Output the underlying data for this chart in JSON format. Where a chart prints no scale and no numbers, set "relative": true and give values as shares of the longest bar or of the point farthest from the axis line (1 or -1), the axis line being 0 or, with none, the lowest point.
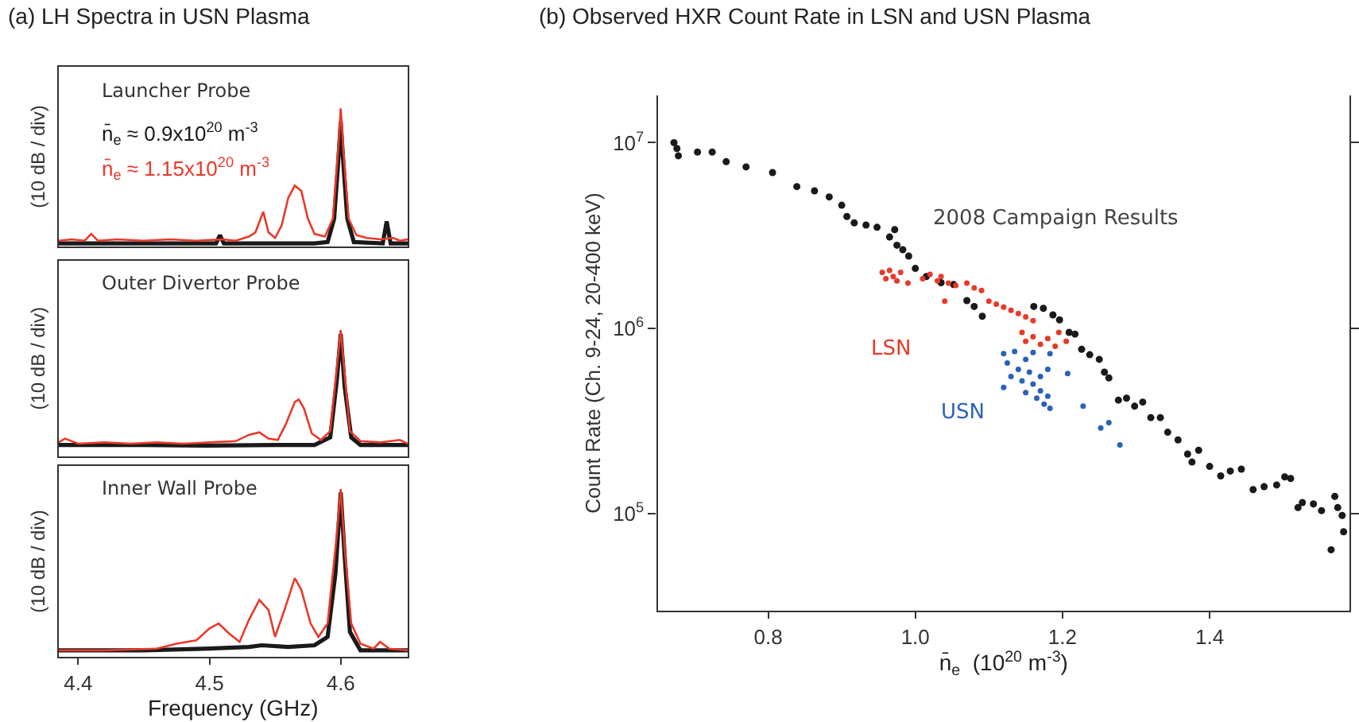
{
  "chart_data": [
    {
      "type": "line",
      "title": "(a) LH Spectra in USN Plasma",
      "ylabel": "(10 dB / div)",
      "annotations": [
        "Launcher Probe"
      ],
      "relative": true,
      "xlim": [
        4.385,
        4.651
      ],
      "tick_labels": false,
      "line_style": "solid",
      "series": [
        {
          "name": "n̄$_{e}$ ≈ 0.9x10$^{20}$ m$^{-3}$",
          "color": "#1a1a1a",
          "x": [
            4.385,
            4.45,
            4.505,
            4.508,
            4.511,
            4.58,
            4.59,
            4.595,
            4.598,
            4.6,
            4.602,
            4.605,
            4.61,
            4.632,
            4.635,
            4.638,
            4.651
          ],
          "values": [
            0.02,
            0.02,
            0.02,
            0.08,
            0.02,
            0.02,
            0.03,
            0.2,
            0.6,
            0.9,
            0.6,
            0.2,
            0.03,
            0.02,
            0.18,
            0.02,
            0.02
          ]
        },
        {
          "name": "n̄$_{e}$ ≈ 1.15x10$^{20}$ m$^{-3}$",
          "color": "#e8392a",
          "x": [
            4.385,
            4.395,
            4.405,
            4.41,
            4.415,
            4.43,
            4.45,
            4.47,
            4.49,
            4.51,
            4.52,
            4.53,
            4.535,
            4.541,
            4.545,
            4.55,
            4.555,
            4.56,
            4.565,
            4.57,
            4.575,
            4.58,
            4.588,
            4.594,
            4.598,
            4.6,
            4.602,
            4.606,
            4.612,
            4.62,
            4.63,
            4.64,
            4.645,
            4.651
          ],
          "values": [
            0.04,
            0.05,
            0.04,
            0.09,
            0.04,
            0.05,
            0.04,
            0.05,
            0.04,
            0.05,
            0.04,
            0.07,
            0.1,
            0.25,
            0.1,
            0.06,
            0.15,
            0.35,
            0.44,
            0.4,
            0.2,
            0.09,
            0.07,
            0.2,
            0.7,
            1.0,
            0.7,
            0.2,
            0.08,
            0.06,
            0.05,
            0.06,
            0.04,
            0.05
          ]
        }
      ]
    },
    {
      "type": "line",
      "ylabel": "(10 dB / div)",
      "annotations": [
        "Outer Divertor Probe"
      ],
      "relative": true,
      "xlim": [
        4.385,
        4.651
      ],
      "tick_labels": false,
      "line_style": "solid",
      "series": [
        {
          "color": "#1a1a1a",
          "x": [
            4.385,
            4.45,
            4.5,
            4.55,
            4.58,
            4.592,
            4.597,
            4.6,
            4.603,
            4.608,
            4.615,
            4.651
          ],
          "values": [
            0.09,
            0.09,
            0.085,
            0.09,
            0.09,
            0.15,
            0.6,
            0.97,
            0.55,
            0.15,
            0.09,
            0.09
          ]
        },
        {
          "color": "#e8392a",
          "x": [
            4.385,
            4.39,
            4.4,
            4.42,
            4.44,
            4.46,
            4.48,
            4.5,
            4.52,
            4.53,
            4.538,
            4.545,
            4.552,
            4.558,
            4.565,
            4.568,
            4.572,
            4.578,
            4.585,
            4.592,
            4.597,
            4.6,
            4.603,
            4.607,
            4.615,
            4.63,
            4.645,
            4.651
          ],
          "values": [
            0.11,
            0.14,
            0.1,
            0.11,
            0.1,
            0.11,
            0.1,
            0.11,
            0.12,
            0.17,
            0.19,
            0.14,
            0.13,
            0.25,
            0.43,
            0.45,
            0.38,
            0.18,
            0.13,
            0.2,
            0.7,
            1.0,
            0.65,
            0.2,
            0.12,
            0.11,
            0.13,
            0.1
          ]
        }
      ]
    },
    {
      "type": "line",
      "xlabel": "Frequency (GHz)",
      "ylabel": "(10 dB / div)",
      "annotations": [
        "Inner Wall Probe"
      ],
      "relative": true,
      "xlim": [
        4.385,
        4.651
      ],
      "xticks": [
        4.4,
        4.5,
        4.6
      ],
      "tick_labels": "x",
      "line_style": "solid",
      "series": [
        {
          "color": "#1a1a1a",
          "x": [
            4.385,
            4.45,
            4.5,
            4.53,
            4.54,
            4.56,
            4.58,
            4.59,
            4.596,
            4.6,
            4.603,
            4.607,
            4.615,
            4.651
          ],
          "values": [
            0.04,
            0.04,
            0.05,
            0.06,
            0.07,
            0.06,
            0.07,
            0.12,
            0.5,
            0.98,
            0.6,
            0.15,
            0.04,
            0.04
          ]
        },
        {
          "color": "#e8392a",
          "x": [
            4.385,
            4.42,
            4.46,
            4.475,
            4.49,
            4.5,
            4.507,
            4.515,
            4.523,
            4.53,
            4.538,
            4.545,
            4.55,
            4.558,
            4.565,
            4.57,
            4.577,
            4.583,
            4.59,
            4.596,
            4.6,
            4.603,
            4.608,
            4.615,
            4.625,
            4.63,
            4.637,
            4.651
          ],
          "values": [
            0.04,
            0.04,
            0.05,
            0.08,
            0.1,
            0.17,
            0.2,
            0.14,
            0.09,
            0.22,
            0.34,
            0.28,
            0.12,
            0.3,
            0.47,
            0.4,
            0.2,
            0.12,
            0.2,
            0.65,
            1.0,
            0.65,
            0.2,
            0.08,
            0.05,
            0.09,
            0.05,
            0.04
          ]
        }
      ]
    },
    {
      "type": "scatter",
      "title": "(b) Observed HXR Count Rate in LSN and USN Plasma",
      "xlabel": "n̄$_{e}$  (10$^{20}$ m$^{-3}$)",
      "ylabel": "Count Rate (Ch. 9-24, 20-400 keV)",
      "log": "y",
      "marker": "circle",
      "xlim": [
        0.65,
        1.59
      ],
      "xticks": [
        0.8,
        {
          "value": 1.0,
          "label": "1.0"
        },
        1.2,
        1.4
      ],
      "ylim": [
        30000,
        18000000
      ],
      "yticks": [
        {
          "value": 100000,
          "label": "10$^{5}$"
        },
        {
          "value": 1000000,
          "label": "10$^{6}$"
        },
        {
          "value": 10000000,
          "label": "10$^{7}$"
        }
      ],
      "series": [
        {
          "name": "2008 Campaign Results",
          "color": "#1a1a1a",
          "x": [
            0.672,
            0.676,
            0.678,
            0.704,
            0.724,
            0.743,
            0.77,
            0.806,
            0.839,
            0.863,
            0.883,
            0.9,
            0.907,
            0.917,
            0.933,
            0.948,
            0.965,
            0.972,
            0.975,
            0.983,
            0.991,
            1.0,
            1.015,
            1.035,
            1.052,
            1.07,
            1.08,
            1.091,
            1.161,
            1.174,
            1.187,
            1.196,
            1.209,
            1.217,
            1.226,
            1.237,
            1.25,
            1.257,
            1.263,
            1.276,
            1.287,
            1.298,
            1.309,
            1.32,
            1.333,
            1.343,
            1.357,
            1.37,
            1.376,
            1.385,
            1.4,
            1.415,
            1.428,
            1.443,
            1.459,
            1.474,
            1.491,
            1.502,
            1.51,
            1.52,
            1.526,
            1.541,
            1.552,
            1.565,
            1.57,
            1.574,
            1.58,
            1.582
          ],
          "values": [
            10000000,
            9300000,
            8500000,
            8900000,
            8900000,
            7900000,
            7400000,
            6900000,
            5800000,
            5500000,
            5100000,
            4600000,
            4000000,
            3700000,
            3600000,
            3500000,
            3100000,
            3400000,
            2800000,
            2650000,
            2450000,
            2100000,
            1900000,
            1760000,
            1720000,
            1410000,
            1310000,
            1160000,
            1310000,
            1280000,
            1180000,
            1110000,
            950000,
            930000,
            770000,
            720000,
            680000,
            580000,
            540000,
            410000,
            420000,
            380000,
            400000,
            330000,
            330000,
            275000,
            250000,
            210000,
            190000,
            220000,
            180000,
            160000,
            170000,
            174000,
            135000,
            140000,
            143000,
            158000,
            155000,
            108000,
            115000,
            113000,
            104000,
            64000,
            124000,
            108000,
            98000,
            80000
          ]
        },
        {
          "name": "LSN",
          "color": "#e8392a",
          "x": [
            0.955,
            0.96,
            0.965,
            0.97,
            0.975,
            0.98,
            0.99,
            1.01,
            1.02,
            1.03,
            1.035,
            1.04,
            1.045,
            1.055,
            1.07,
            1.08,
            1.09,
            1.1,
            1.11,
            1.12,
            1.13,
            1.14,
            1.15,
            1.16,
            1.145,
            1.15,
            1.16,
            1.17,
            1.18,
            1.19,
            1.195,
            1.205
          ],
          "values": [
            2000000,
            1850000,
            2050000,
            1900000,
            1800000,
            2000000,
            1750000,
            1850000,
            1950000,
            1800000,
            1900000,
            1400000,
            1750000,
            1700000,
            1750000,
            1650000,
            1600000,
            1400000,
            1350000,
            1300000,
            1250000,
            1200000,
            1150000,
            1100000,
            950000,
            850000,
            900000,
            820000,
            880000,
            800000,
            950000,
            850000
          ]
        },
        {
          "name": "USN",
          "color": "#2a62b8",
          "x": [
            1.12,
            1.125,
            1.13,
            1.12,
            1.135,
            1.14,
            1.145,
            1.15,
            1.15,
            1.155,
            1.16,
            1.16,
            1.165,
            1.17,
            1.17,
            1.175,
            1.18,
            1.18,
            1.183,
            1.183,
            1.207,
            1.228,
            1.252,
            1.263,
            1.278
          ],
          "values": [
            730000,
            650000,
            550000,
            480000,
            750000,
            600000,
            520000,
            680000,
            450000,
            580000,
            500000,
            740000,
            420000,
            550000,
            460000,
            390000,
            430000,
            600000,
            370000,
            730000,
            570000,
            380000,
            290000,
            310000,
            235000
          ]
        }
      ]
    }
  ]
}
